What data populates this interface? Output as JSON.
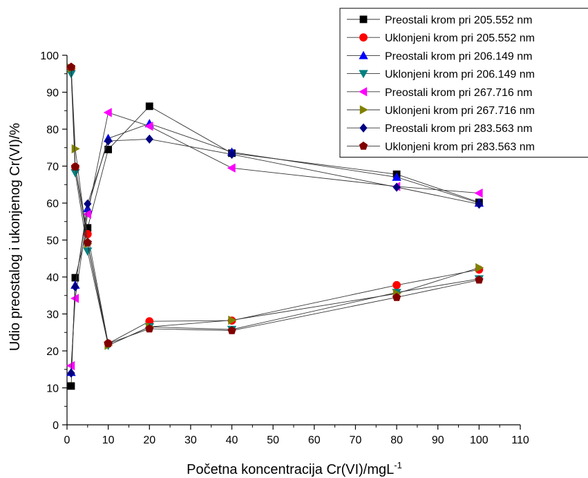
{
  "chart_data": {
    "type": "line",
    "title": "",
    "xlabel_main": "Početna koncentracija Cr(VI)/mgL",
    "xlabel_sup": "-1",
    "ylabel": "Udio preostalog i ukonjenog Cr(VI)/%",
    "xlim": [
      0,
      110
    ],
    "ylim": [
      0,
      100
    ],
    "xticks": [
      0,
      10,
      20,
      30,
      40,
      50,
      60,
      70,
      80,
      90,
      100,
      110
    ],
    "yticks": [
      0,
      10,
      20,
      30,
      40,
      50,
      60,
      70,
      80,
      90,
      100
    ],
    "grid": false,
    "legend_position": "top-right",
    "x": [
      1,
      2,
      5,
      10,
      20,
      40,
      80,
      100
    ],
    "series": [
      {
        "name": "Preostali krom pri 205.552 nm",
        "marker": "square",
        "color": "#000000",
        "values": [
          10.5,
          39.8,
          53.3,
          74.5,
          86.2,
          73.5,
          67.8,
          60.2
        ]
      },
      {
        "name": "Uklonjeni krom pri 205.552 nm",
        "marker": "circle",
        "color": "#ff0000",
        "values": [
          96.5,
          69.8,
          51.6,
          22.0,
          28.0,
          28.2,
          37.8,
          42.0
        ]
      },
      {
        "name": "Preostali krom pri 206.149 nm",
        "marker": "triangle-up",
        "color": "#0000ff",
        "values": [
          14.2,
          37.8,
          58.5,
          77.5,
          81.5,
          73.8,
          67.0,
          60.0
        ]
      },
      {
        "name": "Uklonjeni krom pri 206.149 nm",
        "marker": "triangle-down",
        "color": "#008080",
        "values": [
          95.0,
          68.2,
          47.0,
          21.5,
          26.5,
          25.8,
          35.8,
          39.5
        ]
      },
      {
        "name": "Preostali krom pri 267.716 nm",
        "marker": "triangle-left",
        "color": "#ff00ff",
        "values": [
          16.0,
          34.2,
          57.0,
          84.5,
          80.8,
          69.5,
          64.5,
          62.7
        ]
      },
      {
        "name": "Uklonjeni krom pri 267.716 nm",
        "marker": "triangle-right",
        "color": "#808000",
        "values": [
          96.5,
          74.7,
          49.0,
          21.5,
          26.5,
          28.3,
          35.5,
          42.5
        ]
      },
      {
        "name": "Preostali krom pri 283.563 nm",
        "marker": "diamond",
        "color": "#000080",
        "values": [
          14.0,
          37.3,
          59.8,
          76.8,
          77.3,
          73.2,
          64.3,
          59.7
        ]
      },
      {
        "name": "Uklonjeni krom pri 283.563 nm",
        "marker": "pentagon",
        "color": "#800000",
        "values": [
          96.8,
          69.8,
          49.3,
          22.0,
          26.0,
          25.5,
          34.5,
          39.2
        ]
      }
    ]
  }
}
